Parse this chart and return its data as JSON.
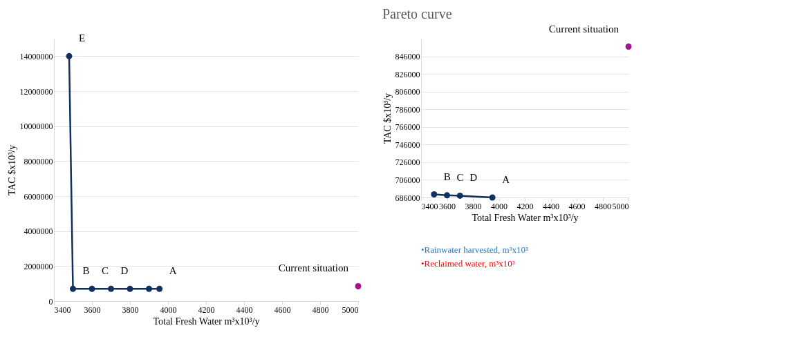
{
  "chart_data": [
    {
      "type": "line",
      "xlabel": "Total Fresh Water m³x10³/y",
      "ylabel": "TAC $x10³/y",
      "xlim": [
        3400,
        5000
      ],
      "xticks": [
        3400,
        3600,
        3800,
        4000,
        4200,
        4400,
        4600,
        4800,
        5000
      ],
      "ylim": [
        0,
        15000000
      ],
      "yticks": [
        0,
        2000000,
        4000000,
        6000000,
        8000000,
        10000000,
        12000000,
        14000000
      ],
      "grid": "y",
      "marker": "circle",
      "line_style": "solid",
      "series": [
        {
          "color": "#12305f",
          "x": [
            3480,
            3500,
            3600,
            3700,
            3800,
            3900,
            3955
          ],
          "values": [
            14000000,
            700000,
            700000,
            700000,
            700000,
            700000,
            700000
          ]
        },
        {
          "type": "scatter",
          "color": "#a3128f",
          "x": [
            5000
          ],
          "values": [
            850000
          ]
        }
      ],
      "annotations": [
        {
          "text": "E",
          "x": 3480,
          "y": 14000000
        },
        {
          "text": "B",
          "x": 3500,
          "y": 700000
        },
        {
          "text": "C",
          "x": 3600,
          "y": 700000
        },
        {
          "text": "D",
          "x": 3700,
          "y": 700000
        },
        {
          "text": "A",
          "x": 3955,
          "y": 700000
        },
        {
          "text": "Current situation",
          "x": 5000,
          "y": 850000
        },
        "•Rainwater harvested, m³x10³",
        "•Reclaimed water, m³x10³"
      ]
    },
    {
      "type": "line",
      "title": "Pareto curve",
      "xlabel": "Total Fresh Water m³x10³/y",
      "ylabel": "TAC $x10³/y",
      "xlim": [
        3400,
        5000
      ],
      "xticks": [
        3400,
        3600,
        3800,
        4000,
        4200,
        4400,
        4600,
        4800,
        5000
      ],
      "ylim": [
        686000,
        866000
      ],
      "yticks": [
        686000,
        706000,
        726000,
        746000,
        766000,
        786000,
        806000,
        826000,
        846000
      ],
      "grid": "y",
      "marker": "circle",
      "line_style": "solid",
      "series": [
        {
          "color": "#12305f",
          "x": [
            3500,
            3600,
            3700,
            3950
          ],
          "values": [
            689500,
            688500,
            688000,
            686000
          ]
        },
        {
          "type": "scatter",
          "color": "#a3128f",
          "x": [
            5000
          ],
          "values": [
            857000
          ]
        }
      ],
      "annotations": [
        {
          "text": "B",
          "x": 3500,
          "y": 689500
        },
        {
          "text": "C",
          "x": 3600,
          "y": 688500
        },
        {
          "text": "D",
          "x": 3700,
          "y": 688000
        },
        {
          "text": "A",
          "x": 3950,
          "y": 686000
        },
        {
          "text": "Current situation",
          "x": 5000,
          "y": 857000
        }
      ]
    }
  ]
}
